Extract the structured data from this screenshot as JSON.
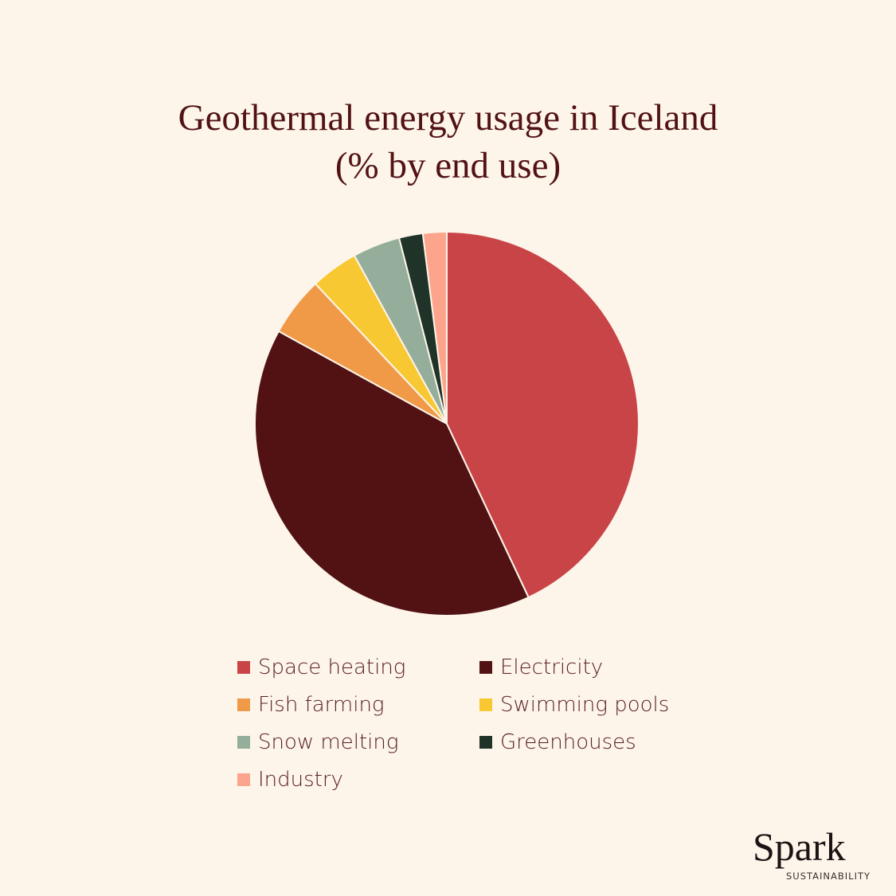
{
  "title_line1": "Geothermal energy usage in Iceland",
  "title_line2": "(% by end use)",
  "logo": {
    "name": "Spark",
    "sub": "SUSTAINABILITY"
  },
  "colors": {
    "background": "#fdf5ea",
    "title": "#521214"
  },
  "legend": [
    {
      "label": "Space heating",
      "color": "#c94447"
    },
    {
      "label": "Electricity",
      "color": "#521214"
    },
    {
      "label": "Fish farming",
      "color": "#f09a48"
    },
    {
      "label": "Swimming pools",
      "color": "#f8c832"
    },
    {
      "label": "Snow melting",
      "color": "#95ae9b"
    },
    {
      "label": "Greenhouses",
      "color": "#1f3328"
    },
    {
      "label": "Industry",
      "color": "#fca48c"
    }
  ],
  "chart_data": {
    "type": "pie",
    "title": "Geothermal energy usage in Iceland (% by end use)",
    "categories": [
      "Space heating",
      "Electricity",
      "Fish farming",
      "Swimming pools",
      "Snow melting",
      "Greenhouses",
      "Industry"
    ],
    "values": [
      43,
      40,
      5,
      4,
      4,
      2,
      2
    ],
    "colors": [
      "#c94447",
      "#521214",
      "#f09a48",
      "#f8c832",
      "#95ae9b",
      "#1f3328",
      "#fca48c"
    ],
    "start_angle": "12 o'clock, clockwise",
    "legend_position": "bottom"
  }
}
